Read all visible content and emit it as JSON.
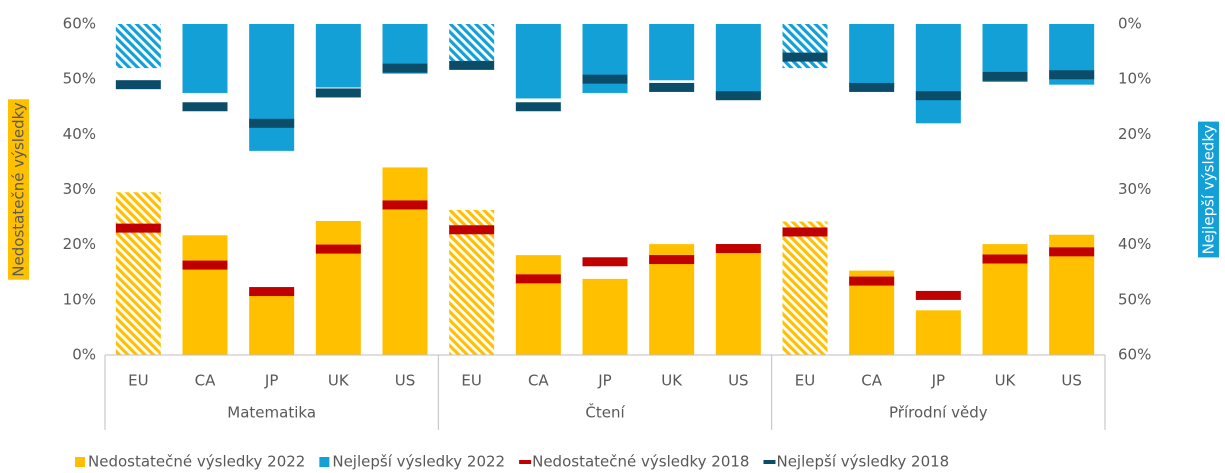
{
  "chart_data": {
    "type": "bar",
    "categories": [
      "EU",
      "CA",
      "JP",
      "UK",
      "US",
      "EU",
      "CA",
      "JP",
      "UK",
      "US",
      "EU",
      "CA",
      "JP",
      "UK",
      "US"
    ],
    "groups": [
      "Matematika",
      "Čtení",
      "Přírodní vědy"
    ],
    "ylabel": "Nedostatečné výsledky",
    "y2label": "Nejlepší výsledky",
    "ylim": [
      0,
      60
    ],
    "yticks": [
      {
        "value": 0,
        "label": "0%"
      },
      {
        "value": 10,
        "label": "10%"
      },
      {
        "value": 20,
        "label": "20%"
      },
      {
        "value": 30,
        "label": "30%"
      },
      {
        "value": 40,
        "label": "40%"
      },
      {
        "value": 50,
        "label": "50%"
      },
      {
        "value": 60,
        "label": "60%"
      }
    ],
    "y2lim": [
      60,
      0
    ],
    "y2ticks": [
      {
        "value": 0,
        "label": "0%"
      },
      {
        "value": 10,
        "label": "10%"
      },
      {
        "value": 20,
        "label": "20%"
      },
      {
        "value": 30,
        "label": "30%"
      },
      {
        "value": 40,
        "label": "40%"
      },
      {
        "value": 50,
        "label": "50%"
      },
      {
        "value": 60,
        "label": "60%"
      }
    ],
    "series": [
      {
        "name": "Nedostatečné výsledky 2022",
        "color": "#ffc000",
        "marker": "bar",
        "hatched": [
          true,
          false,
          false,
          false,
          false,
          true,
          false,
          false,
          false,
          false,
          true,
          false,
          false,
          false,
          false
        ],
        "values": [
          29.5,
          21.7,
          11.0,
          24.3,
          34.0,
          26.3,
          18.1,
          13.8,
          20.1,
          19.7,
          24.2,
          15.3,
          8.1,
          20.1,
          21.8
        ]
      },
      {
        "name": "Nejlepší výsledky 2022",
        "color": "#12a0d7",
        "marker": "bar",
        "axis": "y2",
        "hatched": [
          true,
          false,
          false,
          false,
          false,
          true,
          false,
          false,
          false,
          false,
          true,
          false,
          false,
          false,
          false
        ],
        "values": [
          8,
          12.5,
          23,
          11.5,
          9,
          7,
          13.5,
          12.5,
          10.2,
          13.5,
          8,
          11.5,
          18,
          10.5,
          11
        ]
      },
      {
        "name": "Nedostatečné výsledky 2018",
        "color": "#c00000",
        "marker": "line",
        "values": [
          23.0,
          16.3,
          11.5,
          19.2,
          27.2,
          22.7,
          13.8,
          16.9,
          17.3,
          19.3,
          22.3,
          13.4,
          10.8,
          17.4,
          18.7
        ]
      },
      {
        "name": "Nejlepší výsledky 2018",
        "color": "#0b4d68",
        "marker": "line",
        "axis": "y2",
        "values": [
          11,
          15,
          18,
          12.5,
          8,
          7.5,
          15,
          10,
          11.5,
          13,
          6,
          11.5,
          13,
          9.5,
          9.2
        ]
      }
    ]
  }
}
